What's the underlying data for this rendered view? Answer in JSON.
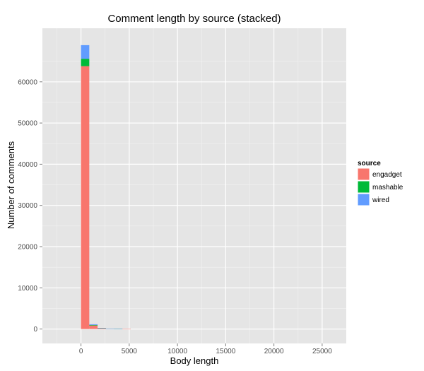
{
  "chart_data": {
    "type": "bar",
    "stacked": true,
    "title": "Comment length by source (stacked)",
    "xlabel": "Body length",
    "ylabel": "Number of comments",
    "xlim": [
      -4000,
      27500
    ],
    "ylim": [
      -3500,
      73000
    ],
    "x_ticks": [
      0,
      5000,
      10000,
      15000,
      20000,
      25000
    ],
    "x_tick_labels": [
      "0",
      "5000",
      "10000",
      "15000",
      "20000",
      "25000"
    ],
    "y_ticks": [
      0,
      10000,
      20000,
      30000,
      40000,
      50000,
      60000
    ],
    "y_tick_labels": [
      "0",
      "10000",
      "20000",
      "30000",
      "40000",
      "50000",
      "60000"
    ],
    "grid": true,
    "legend": {
      "title": "source",
      "position": "right"
    },
    "bin_width": 860,
    "bin_starts": [
      0,
      860,
      1720,
      2580,
      3440,
      4300
    ],
    "series": [
      {
        "name": "engadget",
        "color": "#F8766D",
        "values": [
          63800,
          850,
          200,
          80,
          30,
          10
        ]
      },
      {
        "name": "mashable",
        "color": "#00BA38",
        "values": [
          1800,
          120,
          30,
          10,
          5,
          0
        ]
      },
      {
        "name": "wired",
        "color": "#619CFF",
        "values": [
          3300,
          180,
          40,
          15,
          5,
          0
        ]
      }
    ]
  }
}
